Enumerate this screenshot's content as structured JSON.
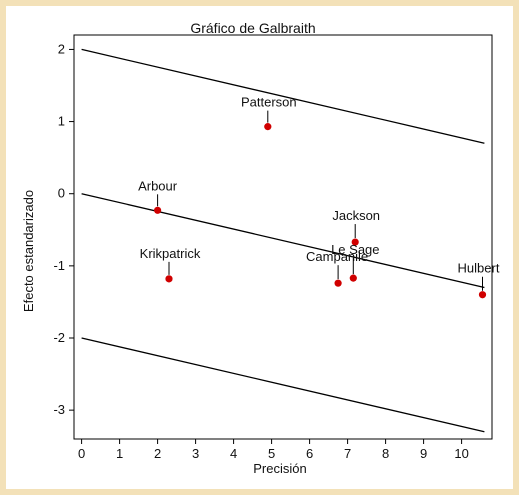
{
  "chart_data": {
    "type": "scatter",
    "title": "Gráfico de Galbraith",
    "xlabel": "Precisión",
    "ylabel": "Efecto estandarizado",
    "xlim": [
      -0.2,
      10.8
    ],
    "ylim": [
      -3.4,
      2.2
    ],
    "x_ticks": [
      0,
      1,
      2,
      3,
      4,
      5,
      6,
      7,
      8,
      9,
      10
    ],
    "y_ticks": [
      2,
      1,
      0,
      -1,
      -2,
      -3
    ],
    "grid": false,
    "legend": "none",
    "marker_color": "#d00000",
    "line_color": "#000000",
    "lines": [
      {
        "name": "upper",
        "x": [
          0,
          10.6
        ],
        "y": [
          2,
          0.7
        ]
      },
      {
        "name": "center",
        "x": [
          0,
          10.6
        ],
        "y": [
          0,
          -1.3
        ]
      },
      {
        "name": "lower",
        "x": [
          0,
          10.6
        ],
        "y": [
          -2,
          -3.3
        ]
      }
    ],
    "points": [
      {
        "label": "Patterson",
        "x": 4.9,
        "y": 0.93
      },
      {
        "label": "Arbour",
        "x": 2.0,
        "y": -0.23
      },
      {
        "label": "Krikpatrick",
        "x": 2.3,
        "y": -1.18
      },
      {
        "label": "Jackson",
        "x": 7.2,
        "y": -0.67
      },
      {
        "label": "Le Sage",
        "x": 7.15,
        "y": -1.17
      },
      {
        "label": "Campanile",
        "x": 6.75,
        "y": -1.24
      },
      {
        "label": "Hulbert",
        "x": 10.55,
        "y": -1.4
      }
    ]
  }
}
